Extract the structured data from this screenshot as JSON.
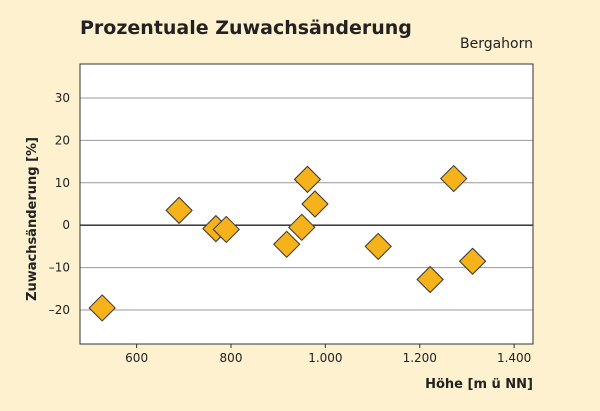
{
  "colors": {
    "background": "#fdf1cf",
    "plot_background": "#ffffff",
    "grid": "#999999",
    "marker_fill": "#f5b21a",
    "marker_stroke": "#333333"
  },
  "chart_data": {
    "type": "scatter",
    "title": "Prozentuale Zuwachsänderung",
    "subtitle": "Bergahorn",
    "xlabel": "Höhe [m ü NN]",
    "ylabel": "Zuwachsänderung [%]",
    "xlim": [
      480,
      1440
    ],
    "ylim": [
      -28,
      38
    ],
    "xticks": [
      600,
      800,
      1000,
      1200,
      1400
    ],
    "xtick_labels": [
      "600",
      "800",
      "1.000",
      "1.200",
      "1.400"
    ],
    "yticks": [
      -20,
      -10,
      0,
      10,
      20,
      30
    ],
    "ytick_labels": [
      "–20",
      "–10",
      "0",
      "10",
      "20",
      "30"
    ],
    "grid": true,
    "marker": "diamond",
    "points": [
      {
        "x": 527,
        "y": -19.5
      },
      {
        "x": 690,
        "y": 3.5
      },
      {
        "x": 768,
        "y": -0.8
      },
      {
        "x": 790,
        "y": -1.0
      },
      {
        "x": 918,
        "y": -4.5
      },
      {
        "x": 950,
        "y": -0.5
      },
      {
        "x": 962,
        "y": 10.8
      },
      {
        "x": 978,
        "y": 5.0
      },
      {
        "x": 1112,
        "y": -5.0
      },
      {
        "x": 1222,
        "y": -12.8
      },
      {
        "x": 1272,
        "y": 11.0
      },
      {
        "x": 1312,
        "y": -8.5
      }
    ]
  }
}
